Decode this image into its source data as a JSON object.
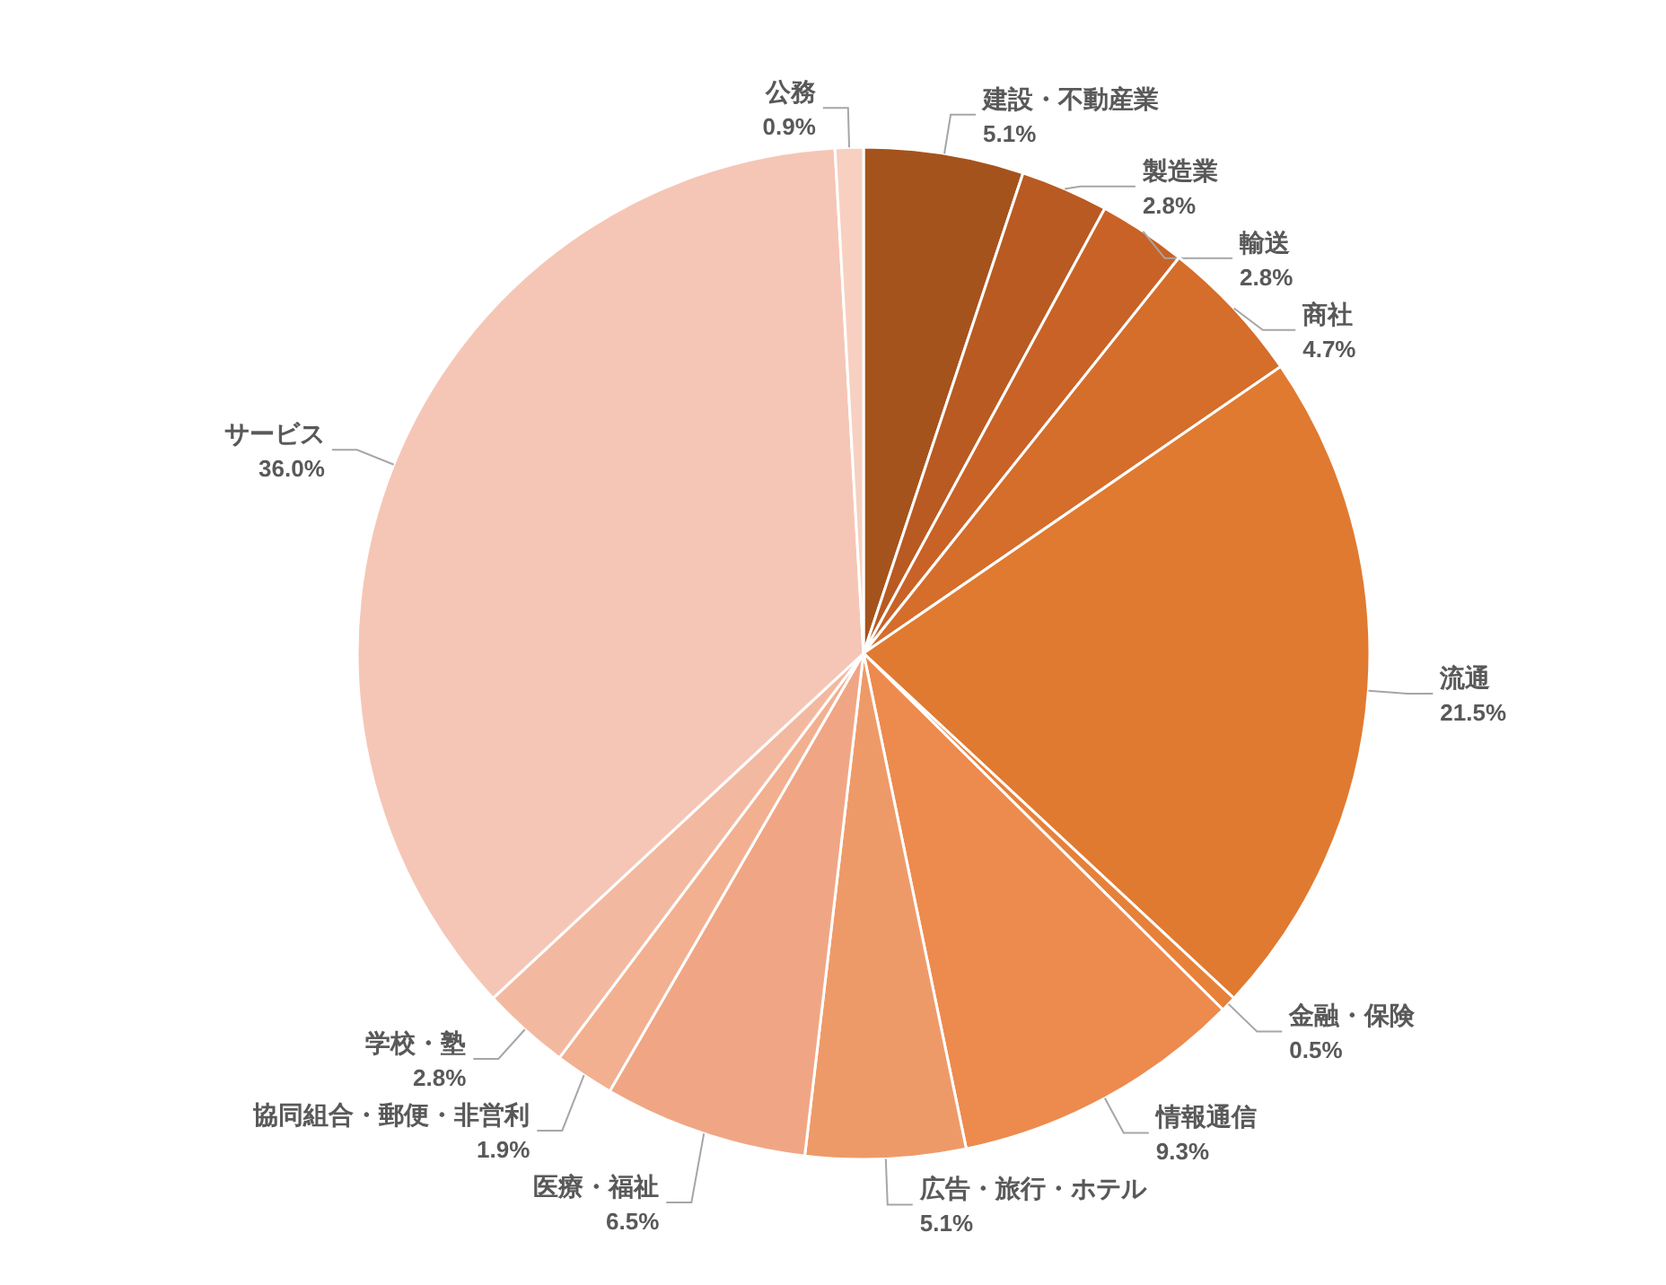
{
  "chart_data": {
    "type": "pie",
    "categories": [
      "建設・不動産業",
      "製造業",
      "輸送",
      "商社",
      "流通",
      "金融・保険",
      "情報通信",
      "広告・旅行・ホテル",
      "医療・福祉",
      "協同組合・郵便・非営利",
      "学校・塾",
      "サービス",
      "公務"
    ],
    "values": [
      5.1,
      2.8,
      2.8,
      4.7,
      21.5,
      0.5,
      9.3,
      5.1,
      6.5,
      1.9,
      2.8,
      36.0,
      0.9
    ],
    "colors": [
      "#a5531d",
      "#b85a22",
      "#c96226",
      "#d56d2b",
      "#e07a30",
      "#e6813a",
      "#ed8a4e",
      "#ee9a68",
      "#f0a685",
      "#f2b090",
      "#f3b9a0",
      "#f5c6b6",
      "#f7d0c2"
    ],
    "value_labels": [
      "5.1%",
      "2.8%",
      "2.8%",
      "4.7%",
      "21.5%",
      "0.5%",
      "9.3%",
      "5.1%",
      "6.5%",
      "1.9%",
      "2.8%",
      "36.0%",
      "0.9%"
    ]
  }
}
